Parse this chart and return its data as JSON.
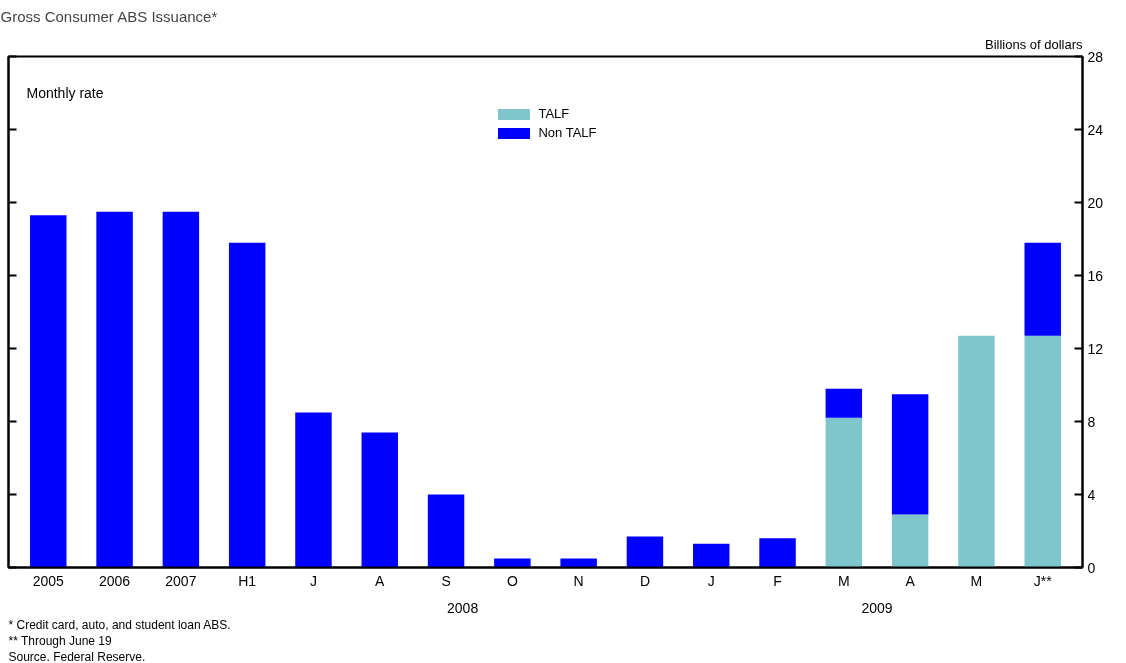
{
  "chart_data": {
    "type": "bar",
    "stacked": true,
    "title": "Gross Consumer ABS Issuance*",
    "ylabel": "Billions of dollars",
    "categories": [
      "2005",
      "2006",
      "2007",
      "H1",
      "J",
      "A",
      "S",
      "O",
      "N",
      "D",
      "J",
      "F",
      "M",
      "A",
      "M",
      "J**"
    ],
    "series": [
      {
        "name": "TALF",
        "color": "#7fc6cc",
        "values": [
          null,
          null,
          null,
          null,
          null,
          null,
          null,
          null,
          null,
          null,
          null,
          null,
          8.2,
          2.9,
          12.7,
          12.7
        ]
      },
      {
        "name": "Non TALF",
        "color": "#0000ff",
        "values": [
          19.3,
          19.5,
          19.5,
          17.8,
          8.5,
          7.4,
          4.0,
          0.5,
          0.5,
          1.7,
          1.3,
          1.6,
          1.6,
          6.6,
          null,
          5.1
        ]
      }
    ],
    "ylim": [
      0,
      28
    ],
    "yticks": [
      0,
      4,
      8,
      12,
      16,
      20,
      24,
      28
    ],
    "legend": "top",
    "grid": false,
    "annotations": [
      "Monthly rate",
      "2008",
      "2009",
      "* Credit card, auto, and student loan ABS.",
      "** Through June 19",
      "Source. Federal Reserve."
    ]
  }
}
